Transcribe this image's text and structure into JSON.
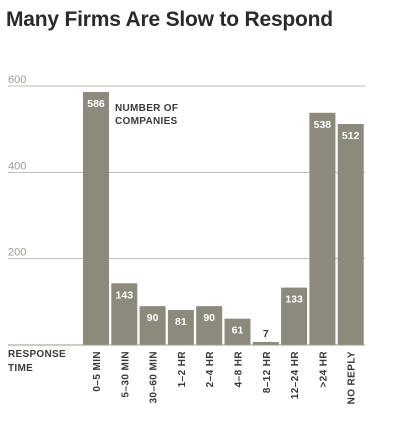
{
  "title": "Many Firms Are Slow to Respond",
  "chart_data": {
    "type": "bar",
    "title": "Many Firms Are Slow to Respond",
    "xlabel_lines": [
      "RESPONSE",
      "TIME"
    ],
    "ylabel": "",
    "series_label_lines": [
      "NUMBER OF",
      "COMPANIES"
    ],
    "categories": [
      "0–5 MIN",
      "5–30 MIN",
      "30–60 MIN",
      "1–2 HR",
      "2–4 HR",
      "4–8 HR",
      "8–12 HR",
      "12–24 HR",
      ">24 HR",
      "NO REPLY"
    ],
    "values": [
      586,
      143,
      90,
      81,
      90,
      61,
      7,
      133,
      538,
      512
    ],
    "ylim": [
      0,
      600
    ],
    "yticks": [
      200,
      400,
      600
    ],
    "grid": true,
    "colors": {
      "bar": "#8b8a7c",
      "grid": "#bdbcb2",
      "tick": "#9c9a90",
      "text": "#3a3a3a"
    }
  }
}
